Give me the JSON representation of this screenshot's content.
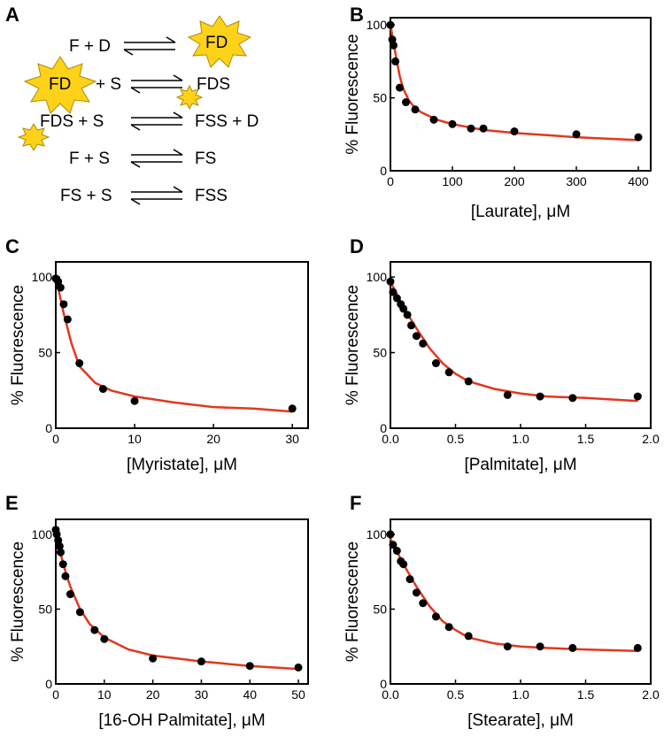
{
  "panel_a": {
    "letter": "A",
    "equations": [
      {
        "left": "F + D",
        "right": "FD",
        "left_star": null,
        "right_star": "FD"
      },
      {
        "left": "+ S",
        "right": "FDS",
        "left_star": "FD",
        "right_star": "small"
      },
      {
        "left": "FDS + S",
        "right": "FSS + D",
        "left_star": "small",
        "right_star": null
      },
      {
        "left": "F + S",
        "right": "FS",
        "left_star": null,
        "right_star": null
      },
      {
        "left": "FS + S",
        "right": "FSS",
        "left_star": null,
        "right_star": null
      }
    ]
  },
  "colors": {
    "fit": "#e3371e",
    "points": "#000000",
    "star_fill": "#ffd21a"
  },
  "chart_data": [
    {
      "panel": "B",
      "type": "scatter",
      "xlabel": "[Laurate], μM",
      "ylabel": "% Fluorescence",
      "xlim": [
        0,
        420
      ],
      "ylim": [
        0,
        105
      ],
      "xticks": [
        0,
        100,
        200,
        300,
        400
      ],
      "xtick_labels": [
        "0",
        "100",
        "200",
        "300",
        "400"
      ],
      "yticks": [
        0,
        50,
        100
      ],
      "ytick_labels": [
        "0",
        "50",
        "100"
      ],
      "points": [
        [
          0,
          100
        ],
        [
          3,
          90
        ],
        [
          5,
          86
        ],
        [
          8,
          75
        ],
        [
          15,
          57
        ],
        [
          25,
          47
        ],
        [
          40,
          42
        ],
        [
          70,
          35
        ],
        [
          100,
          32
        ],
        [
          130,
          29
        ],
        [
          150,
          29
        ],
        [
          200,
          27
        ],
        [
          300,
          25
        ],
        [
          400,
          23
        ]
      ],
      "fit": [
        [
          0,
          100
        ],
        [
          5,
          88
        ],
        [
          10,
          76
        ],
        [
          15,
          65
        ],
        [
          20,
          57
        ],
        [
          30,
          48
        ],
        [
          40,
          43
        ],
        [
          50,
          40
        ],
        [
          75,
          35
        ],
        [
          100,
          32
        ],
        [
          150,
          28
        ],
        [
          200,
          26
        ],
        [
          300,
          23
        ],
        [
          400,
          21
        ]
      ]
    },
    {
      "panel": "C",
      "type": "scatter",
      "xlabel": "[Myristate], μM",
      "ylabel": "% Fluorescence",
      "xlim": [
        0,
        32
      ],
      "ylim": [
        0,
        110
      ],
      "xticks": [
        0,
        10,
        20,
        30
      ],
      "xtick_labels": [
        "0",
        "10",
        "20",
        "30"
      ],
      "yticks": [
        0,
        50,
        100
      ],
      "ytick_labels": [
        "0",
        "50",
        "100"
      ],
      "points": [
        [
          0,
          99
        ],
        [
          0.3,
          97
        ],
        [
          0.6,
          93
        ],
        [
          1,
          82
        ],
        [
          1.5,
          72
        ],
        [
          3,
          43
        ],
        [
          6,
          26
        ],
        [
          10,
          18
        ],
        [
          30,
          13
        ]
      ],
      "fit": [
        [
          0,
          100
        ],
        [
          0.5,
          88
        ],
        [
          1,
          76
        ],
        [
          2,
          56
        ],
        [
          3,
          41
        ],
        [
          5,
          30
        ],
        [
          7,
          25
        ],
        [
          10,
          21
        ],
        [
          15,
          17
        ],
        [
          20,
          14
        ],
        [
          25,
          13
        ],
        [
          30,
          11
        ]
      ]
    },
    {
      "panel": "D",
      "type": "scatter",
      "xlabel": "[Palmitate], μM",
      "ylabel": "% Fluorescence",
      "xlim": [
        0,
        2.0
      ],
      "ylim": [
        0,
        110
      ],
      "xticks": [
        0,
        0.5,
        1.0,
        1.5,
        2.0
      ],
      "xtick_labels": [
        "0.0",
        "0.5",
        "1.0",
        "1.5",
        "2.0"
      ],
      "yticks": [
        0,
        50,
        100
      ],
      "ytick_labels": [
        "0",
        "50",
        "100"
      ],
      "points": [
        [
          0,
          97
        ],
        [
          0.02,
          90
        ],
        [
          0.05,
          86
        ],
        [
          0.08,
          82
        ],
        [
          0.1,
          79
        ],
        [
          0.13,
          75
        ],
        [
          0.16,
          68
        ],
        [
          0.2,
          61
        ],
        [
          0.25,
          56
        ],
        [
          0.35,
          43
        ],
        [
          0.45,
          37
        ],
        [
          0.6,
          31
        ],
        [
          0.9,
          22
        ],
        [
          1.15,
          21
        ],
        [
          1.4,
          20
        ],
        [
          1.9,
          21
        ]
      ],
      "fit": [
        [
          0,
          97
        ],
        [
          0.1,
          80
        ],
        [
          0.2,
          66
        ],
        [
          0.3,
          53
        ],
        [
          0.4,
          43
        ],
        [
          0.5,
          36
        ],
        [
          0.6,
          31
        ],
        [
          0.8,
          26
        ],
        [
          1.0,
          23
        ],
        [
          1.2,
          21
        ],
        [
          1.5,
          20
        ],
        [
          1.9,
          18
        ]
      ]
    },
    {
      "panel": "E",
      "type": "scatter",
      "xlabel": "[16-OH Palmitate], μM",
      "ylabel": "% Fluorescence",
      "xlim": [
        0,
        52
      ],
      "ylim": [
        0,
        110
      ],
      "xticks": [
        0,
        10,
        20,
        30,
        40,
        50
      ],
      "xtick_labels": [
        "0",
        "10",
        "20",
        "30",
        "40",
        "50"
      ],
      "yticks": [
        0,
        50,
        100
      ],
      "ytick_labels": [
        "0",
        "50",
        "100"
      ],
      "points": [
        [
          0,
          103
        ],
        [
          0.2,
          100
        ],
        [
          0.5,
          96
        ],
        [
          0.8,
          92
        ],
        [
          1,
          88
        ],
        [
          1.5,
          80
        ],
        [
          2,
          72
        ],
        [
          3,
          60
        ],
        [
          5,
          48
        ],
        [
          8,
          36
        ],
        [
          10,
          30
        ],
        [
          20,
          17
        ],
        [
          30,
          15
        ],
        [
          40,
          12
        ],
        [
          50,
          11
        ]
      ],
      "fit": [
        [
          0,
          100
        ],
        [
          1,
          87
        ],
        [
          2,
          75
        ],
        [
          3,
          65
        ],
        [
          5,
          50
        ],
        [
          7,
          40
        ],
        [
          10,
          31
        ],
        [
          15,
          23
        ],
        [
          20,
          19
        ],
        [
          30,
          15
        ],
        [
          40,
          12
        ],
        [
          50,
          10
        ]
      ]
    },
    {
      "panel": "F",
      "type": "scatter",
      "xlabel": "[Stearate], μM",
      "ylabel": "% Fluorescence",
      "xlim": [
        0,
        2.0
      ],
      "ylim": [
        0,
        110
      ],
      "xticks": [
        0,
        0.5,
        1.0,
        1.5,
        2.0
      ],
      "xtick_labels": [
        "0.0",
        "0.5",
        "1.0",
        "1.5",
        "2.0"
      ],
      "yticks": [
        0,
        50,
        100
      ],
      "ytick_labels": [
        "0",
        "50",
        "100"
      ],
      "points": [
        [
          0,
          100
        ],
        [
          0.02,
          93
        ],
        [
          0.05,
          89
        ],
        [
          0.08,
          82
        ],
        [
          0.1,
          80
        ],
        [
          0.15,
          70
        ],
        [
          0.2,
          61
        ],
        [
          0.25,
          54
        ],
        [
          0.35,
          45
        ],
        [
          0.45,
          38
        ],
        [
          0.6,
          32
        ],
        [
          0.9,
          25
        ],
        [
          1.15,
          25
        ],
        [
          1.4,
          24
        ],
        [
          1.9,
          24
        ]
      ],
      "fit": [
        [
          0,
          97
        ],
        [
          0.1,
          80
        ],
        [
          0.2,
          65
        ],
        [
          0.3,
          52
        ],
        [
          0.4,
          42
        ],
        [
          0.5,
          36
        ],
        [
          0.6,
          31
        ],
        [
          0.8,
          27
        ],
        [
          1.0,
          25
        ],
        [
          1.2,
          24
        ],
        [
          1.5,
          23
        ],
        [
          1.9,
          22
        ]
      ]
    }
  ]
}
